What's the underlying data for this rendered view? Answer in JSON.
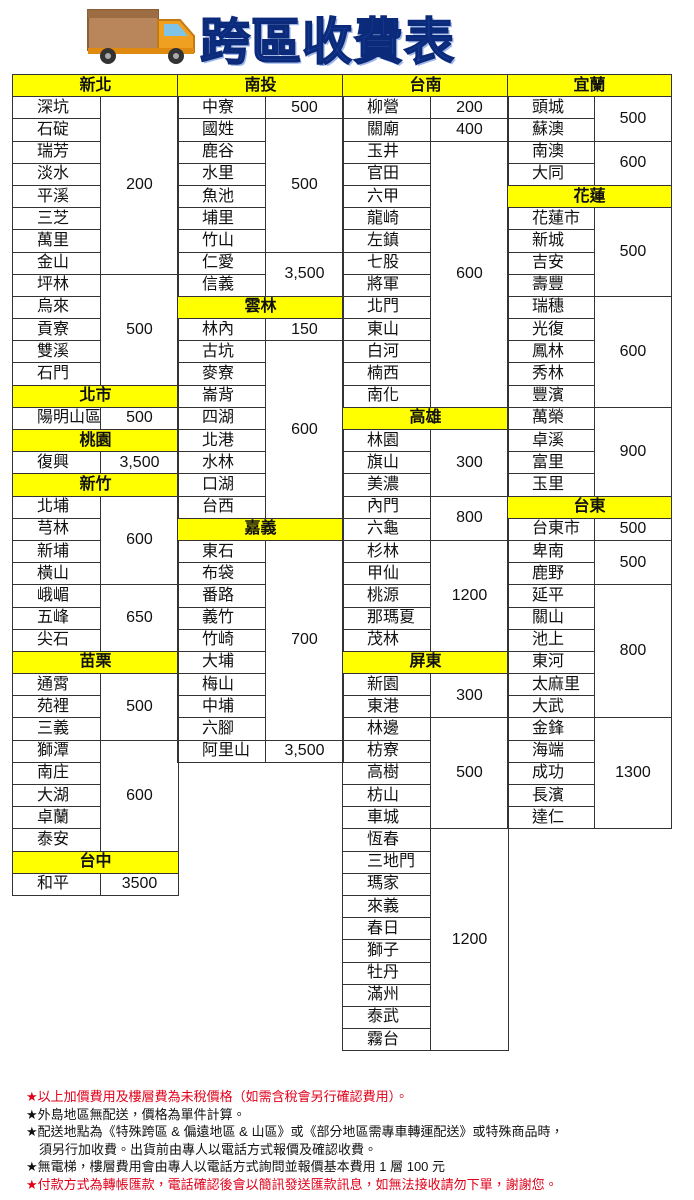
{
  "header": {
    "title": "跨區收費表"
  },
  "columns": [
    {
      "sections": [
        {
          "region": "新北",
          "groups": [
            {
              "price": "200",
              "places": [
                "深坑",
                "石碇",
                "瑞芳",
                "淡水",
                "平溪",
                "三芝",
                "萬里",
                "金山"
              ]
            },
            {
              "price": "500",
              "places": [
                "坪林",
                "烏來",
                "貢寮",
                "雙溪",
                "石門"
              ]
            }
          ]
        },
        {
          "region": "北市",
          "groups": [
            {
              "price": "500",
              "places": [
                "陽明山區"
              ]
            }
          ]
        },
        {
          "region": "桃園",
          "groups": [
            {
              "price": "3,500",
              "places": [
                "復興"
              ]
            }
          ]
        },
        {
          "region": "新竹",
          "groups": [
            {
              "price": "600",
              "places": [
                "北埔",
                "芎林",
                "新埔",
                "橫山"
              ]
            },
            {
              "price": "650",
              "places": [
                "峨嵋",
                "五峰",
                "尖石"
              ]
            }
          ]
        },
        {
          "region": "苗栗",
          "groups": [
            {
              "price": "500",
              "places": [
                "通霄",
                "苑裡",
                "三義"
              ]
            },
            {
              "price": "600",
              "places": [
                "獅潭",
                "南庄",
                "大湖",
                "卓蘭",
                "泰安"
              ]
            }
          ]
        },
        {
          "region": "台中",
          "groups": [
            {
              "price": "3500",
              "places": [
                "和平"
              ]
            }
          ]
        }
      ]
    },
    {
      "sections": [
        {
          "region": "南投",
          "groups": [
            {
              "price": "500",
              "places": [
                "中寮"
              ]
            },
            {
              "price": "500",
              "places": [
                "國姓",
                "鹿谷",
                "水里",
                "魚池",
                "埔里",
                "竹山"
              ]
            },
            {
              "price": "3,500",
              "places": [
                "仁愛",
                "信義"
              ]
            }
          ]
        },
        {
          "region": "雲林",
          "groups": [
            {
              "price": "150",
              "places": [
                "林內"
              ]
            },
            {
              "price": "600",
              "places": [
                "古坑",
                "麥寮",
                "崙背",
                "四湖",
                "北港",
                "水林",
                "口湖",
                "台西"
              ]
            }
          ]
        },
        {
          "region": "嘉義",
          "groups": [
            {
              "price": "700",
              "places": [
                "東石",
                "布袋",
                "番路",
                "義竹",
                "竹崎",
                "大埔",
                "梅山",
                "中埔",
                "六腳"
              ]
            },
            {
              "price": "3,500",
              "places": [
                "阿里山"
              ]
            }
          ]
        }
      ]
    },
    {
      "sections": [
        {
          "region": "台南",
          "groups": [
            {
              "price": "200",
              "places": [
                "柳營"
              ]
            },
            {
              "price": "400",
              "places": [
                "關廟"
              ]
            },
            {
              "price": "600",
              "places": [
                "玉井",
                "官田",
                "六甲",
                "龍崎",
                "左鎮",
                "七股",
                "將軍",
                "北門",
                "東山",
                "白河",
                "楠西",
                "南化"
              ]
            }
          ]
        },
        {
          "region": "高雄",
          "groups": [
            {
              "price": "300",
              "places": [
                "林園",
                "旗山",
                "美濃"
              ]
            },
            {
              "price": "800",
              "places": [
                "內門",
                "六龜"
              ]
            },
            {
              "price": "1200",
              "places": [
                "杉林",
                "甲仙",
                "桃源",
                "那瑪夏",
                "茂林"
              ]
            }
          ]
        },
        {
          "region": "屏東",
          "groups": [
            {
              "price": "300",
              "places": [
                "新園",
                "東港"
              ]
            },
            {
              "price": "500",
              "places": [
                "林邊",
                "枋寮",
                "高樹",
                "枋山",
                "車城"
              ]
            },
            {
              "price": "1200",
              "places": [
                "恆春",
                "三地門",
                "瑪家",
                "來義",
                "春日",
                "獅子",
                "牡丹",
                "滿州",
                "泰武",
                "霧台"
              ]
            }
          ]
        }
      ]
    },
    {
      "sections": [
        {
          "region": "宜蘭",
          "groups": [
            {
              "price": "500",
              "places": [
                "頭城",
                "蘇澳"
              ]
            },
            {
              "price": "600",
              "places": [
                "南澳",
                "大同"
              ]
            }
          ]
        },
        {
          "region": "花蓮",
          "groups": [
            {
              "price": "500",
              "places": [
                "花蓮市",
                "新城",
                "吉安",
                "壽豐"
              ]
            },
            {
              "price": "600",
              "places": [
                "瑞穗",
                "光復",
                "鳳林",
                "秀林",
                "豐濱"
              ]
            },
            {
              "price": "900",
              "places": [
                "萬榮",
                "卓溪",
                "富里",
                "玉里"
              ]
            }
          ]
        },
        {
          "region": "台東",
          "groups": [
            {
              "price": "500",
              "places": [
                "台東市"
              ]
            },
            {
              "price": "500",
              "places": [
                "卑南",
                "鹿野"
              ]
            },
            {
              "price": "800",
              "places": [
                "延平",
                "關山",
                "池上",
                "東河",
                "太麻里",
                "大武"
              ]
            },
            {
              "price": "1300",
              "places": [
                "金鋒",
                "海端",
                "成功",
                "長濱",
                "達仁"
              ]
            }
          ]
        }
      ]
    }
  ],
  "notes": [
    "★以上加價費用及樓層費為未稅價格（如需含稅會另行確認費用）。",
    "★外島地區無配送，價格為單件計算。",
    "★配送地點為《特殊跨區 & 偏遠地區 & 山區》或《部分地區需專車轉運配送》或特殊商品時，",
    "須另行加收費。出貨前由專人以電話方式報價及確認收費。",
    "★無電梯，樓層費用會由專人以電話方式詢問並報價基本費用 1 層 100 元",
    "★付款方式為轉帳匯款，電話確認後會以簡訊發送匯款訊息，如無法接收請勿下單，謝謝您。"
  ]
}
